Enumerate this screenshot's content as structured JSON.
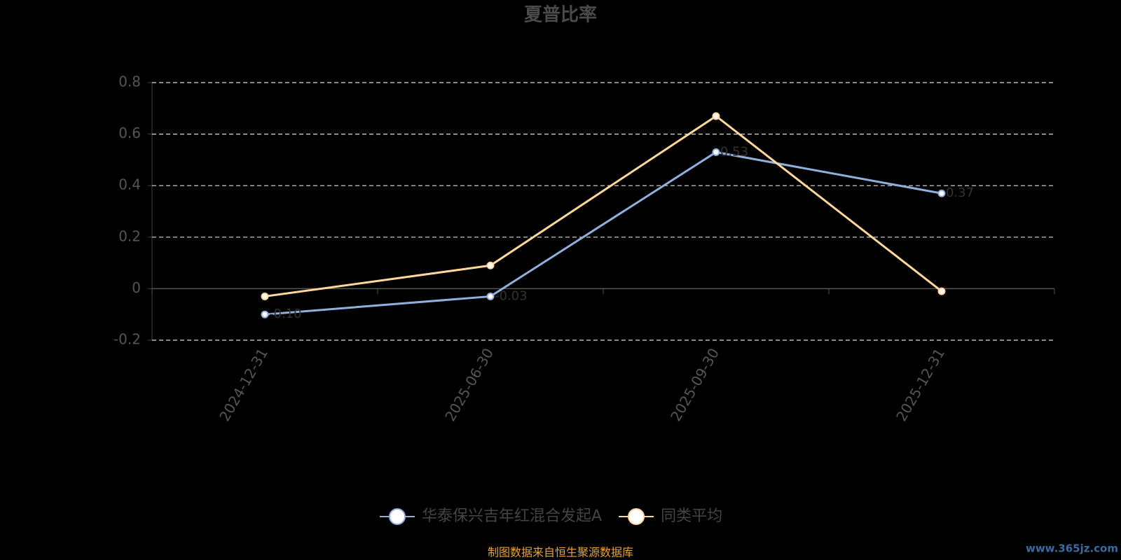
{
  "chart_data": {
    "type": "line",
    "title": "夏普比率",
    "categories": [
      "2024-12-31",
      "2025-06-30",
      "2025-09-30",
      "2025-12-31"
    ],
    "series": [
      {
        "name": "华泰保兴吉年红混合发起A",
        "color": "#8fb0dc",
        "values": [
          -0.1,
          -0.03,
          0.53,
          0.37
        ],
        "value_labels": [
          "-0.10",
          "-0.03",
          "0.53",
          "0.37"
        ]
      },
      {
        "name": "同类平均",
        "color": "#ffd899",
        "values": [
          -0.03,
          0.09,
          0.67,
          -0.01
        ]
      }
    ],
    "ylim": [
      -0.2,
      0.8
    ],
    "yticks": [
      -0.2,
      0,
      0.2,
      0.4,
      0.6,
      0.8
    ],
    "grid": true,
    "legend": "bottom",
    "source": "制图数据来自恒生聚源数据库",
    "watermark": "www.365jz.com"
  }
}
